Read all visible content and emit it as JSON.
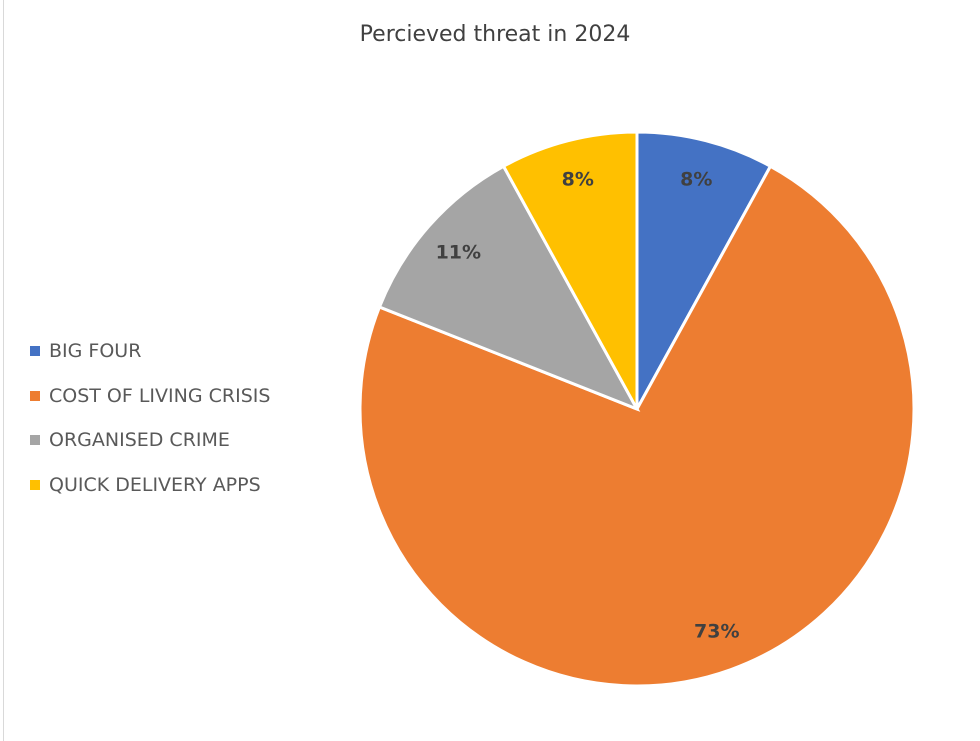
{
  "chart_data": {
    "type": "pie",
    "title": "Percieved threat in 2024",
    "legend_position": "left",
    "start_angle_deg": 0,
    "direction": "clockwise",
    "slices": [
      {
        "label": "BIG FOUR",
        "value": 8,
        "data_label": "8%",
        "color": "#4472C4"
      },
      {
        "label": "COST OF LIVING CRISIS",
        "value": 73,
        "data_label": "73%",
        "color": "#ED7D31"
      },
      {
        "label": "ORGANISED CRIME",
        "value": 11,
        "data_label": "11%",
        "color": "#A5A5A5"
      },
      {
        "label": "QUICK DELIVERY APPS",
        "value": 8,
        "data_label": "8%",
        "color": "#FFC000"
      }
    ]
  }
}
